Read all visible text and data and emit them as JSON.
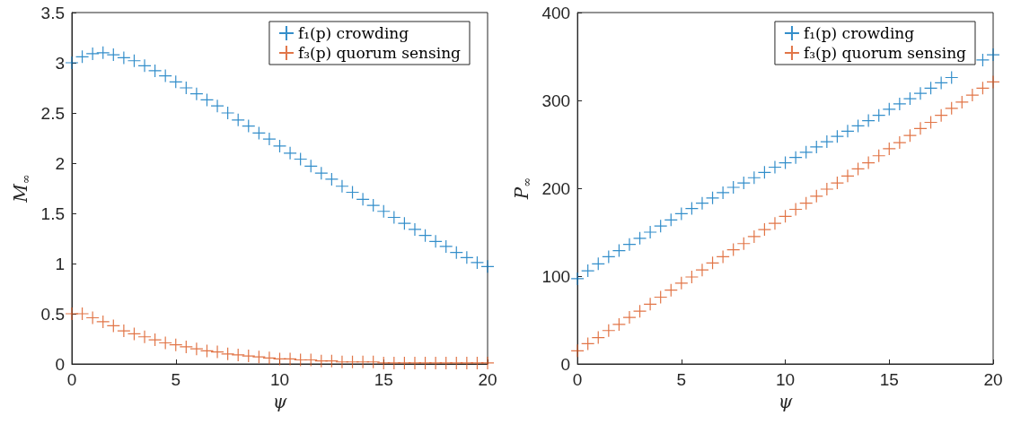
{
  "chart_data": [
    {
      "type": "scatter",
      "xlabel": "ψ",
      "ylabel": "M$_{∞}$",
      "marker": "cross",
      "legend": "top right",
      "grid": false,
      "x": [
        0,
        0.5,
        1,
        1.5,
        2,
        2.5,
        3,
        3.5,
        4,
        4.5,
        5,
        5.5,
        6,
        6.5,
        7,
        7.5,
        8,
        8.5,
        9,
        9.5,
        10,
        10.5,
        11,
        11.5,
        12,
        12.5,
        13,
        13.5,
        14,
        14.5,
        15,
        15.5,
        16,
        16.5,
        17,
        17.5,
        18,
        18.5,
        19,
        19.5,
        20
      ],
      "xlim": [
        0,
        20
      ],
      "xticks": [
        0,
        5,
        10,
        15,
        20
      ],
      "ylim": [
        0,
        3.5
      ],
      "yticks": [
        0,
        0.5,
        1,
        1.5,
        2,
        2.5,
        3,
        3.5
      ],
      "series": [
        {
          "name": "f₁(p) crowding",
          "color": "#0072bd",
          "values": [
            3.0,
            3.06,
            3.09,
            3.1,
            3.08,
            3.05,
            3.02,
            2.97,
            2.92,
            2.87,
            2.81,
            2.75,
            2.69,
            2.63,
            2.57,
            2.5,
            2.43,
            2.37,
            2.3,
            2.24,
            2.17,
            2.1,
            2.04,
            1.97,
            1.9,
            1.84,
            1.77,
            1.71,
            1.64,
            1.58,
            1.52,
            1.46,
            1.4,
            1.34,
            1.28,
            1.22,
            1.17,
            1.11,
            1.06,
            1.01,
            0.97
          ]
        },
        {
          "name": "f₃(p) quorum sensing",
          "color": "#d95319",
          "values": [
            0.5,
            0.5,
            0.46,
            0.42,
            0.38,
            0.33,
            0.3,
            0.27,
            0.24,
            0.21,
            0.19,
            0.17,
            0.15,
            0.13,
            0.12,
            0.1,
            0.09,
            0.08,
            0.07,
            0.06,
            0.05,
            0.05,
            0.04,
            0.04,
            0.03,
            0.03,
            0.02,
            0.02,
            0.02,
            0.02,
            0.01,
            0.01,
            0.01,
            0.01,
            0.01,
            0.01,
            0.01,
            0.01,
            0.01,
            0.01,
            0.01
          ]
        }
      ]
    },
    {
      "type": "scatter",
      "xlabel": "ψ",
      "ylabel": "P$_{∞}$",
      "marker": "cross",
      "legend": "top right",
      "grid": false,
      "x": [
        0,
        0.5,
        1,
        1.5,
        2,
        2.5,
        3,
        3.5,
        4,
        4.5,
        5,
        5.5,
        6,
        6.5,
        7,
        7.5,
        8,
        8.5,
        9,
        9.5,
        10,
        10.5,
        11,
        11.5,
        12,
        12.5,
        13,
        13.5,
        14,
        14.5,
        15,
        15.5,
        16,
        16.5,
        17,
        17.5,
        18,
        18.5,
        19,
        19.5,
        20
      ],
      "xlim": [
        0,
        20
      ],
      "xticks": [
        0,
        5,
        10,
        15,
        20
      ],
      "ylim": [
        0,
        400
      ],
      "yticks": [
        0,
        100,
        200,
        300,
        400
      ],
      "series": [
        {
          "name": "f₁(p) crowding",
          "color": "#0072bd",
          "values": [
            97,
            106,
            114,
            122,
            129,
            136,
            143,
            150,
            157,
            164,
            171,
            177,
            183,
            189,
            195,
            201,
            206,
            212,
            218,
            224,
            229,
            235,
            241,
            247,
            253,
            259,
            265,
            271,
            277,
            283,
            290,
            296,
            302,
            308,
            314,
            320,
            326,
            null,
            null,
            346,
            352
          ]
        },
        {
          "name": "f₃(p) quorum sensing",
          "color": "#d95319",
          "values": [
            15,
            23,
            30,
            38,
            45,
            53,
            60,
            68,
            76,
            84,
            92,
            99,
            107,
            115,
            122,
            130,
            137,
            145,
            153,
            160,
            168,
            176,
            183,
            191,
            199,
            206,
            214,
            222,
            229,
            237,
            245,
            252,
            260,
            268,
            275,
            283,
            291,
            298,
            306,
            314,
            321
          ]
        }
      ]
    }
  ]
}
